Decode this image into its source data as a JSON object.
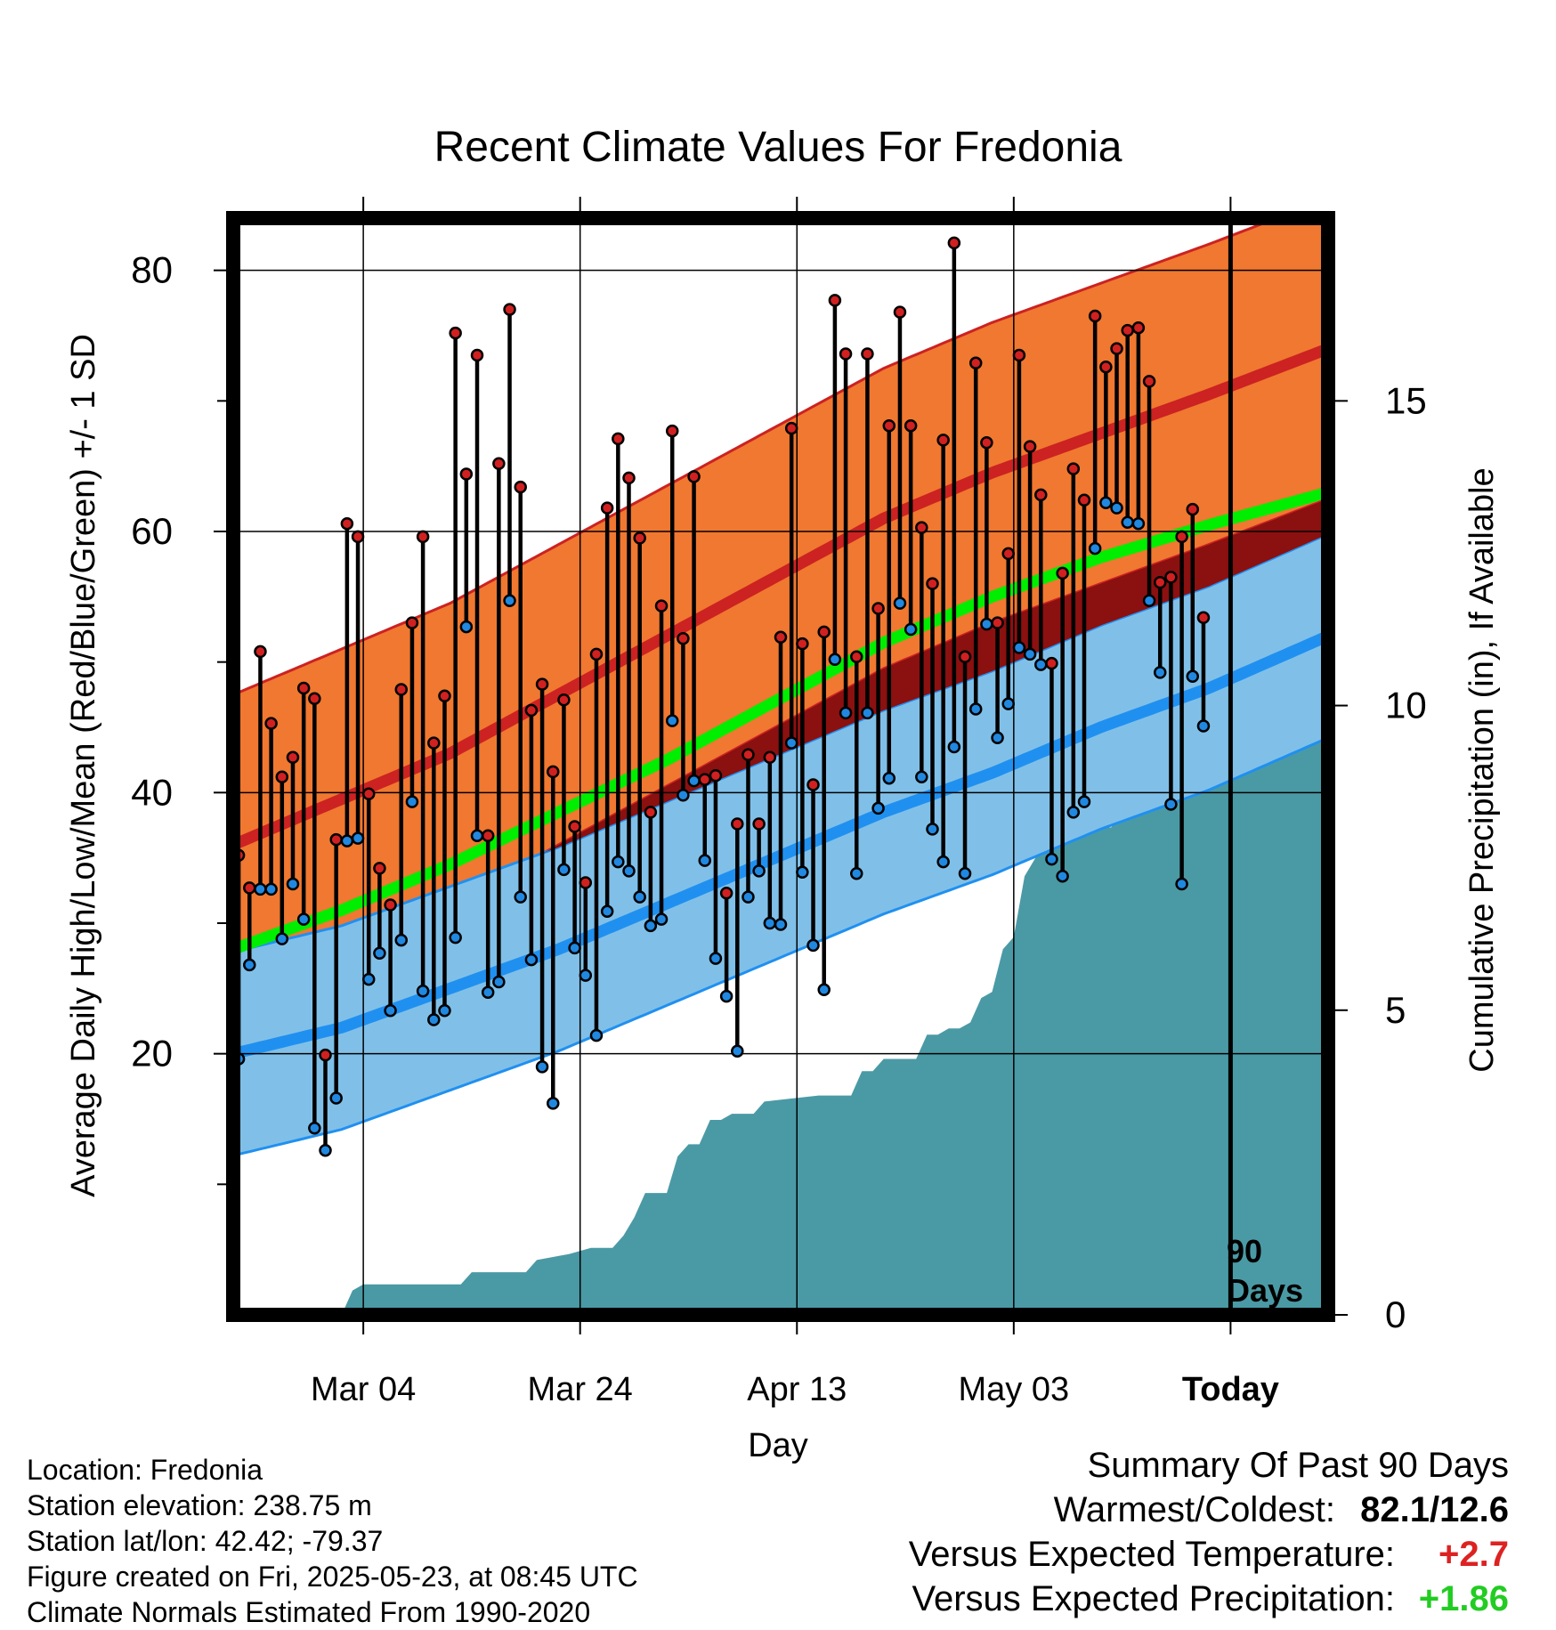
{
  "chart_data": {
    "type": "line",
    "title": "Recent Climate Values For Fredonia",
    "xlabel": "Day",
    "ylabel": "Average Daily High/Low/Mean (Red/Blue/Green) +/- 1 SD",
    "y2label": "Cumulative Precipitation (in), If Available",
    "x_tick_labels": [
      "Mar 04",
      "Mar 24",
      "Apr 13",
      "May 03",
      "Today"
    ],
    "x_tick_days": [
      12,
      32,
      52,
      72,
      92
    ],
    "x_range_days": [
      0,
      101
    ],
    "today_day": 92,
    "today_label": "90 Days",
    "ylim": [
      0,
      84
    ],
    "y_ticks": [
      20,
      40,
      60,
      80
    ],
    "y2lim": [
      0,
      18
    ],
    "y2_ticks": [
      0,
      5,
      10,
      15
    ],
    "grid": true,
    "colors": {
      "high_band": "#f07830",
      "high_mean": "#cc2222",
      "low_band": "#80c0e8",
      "low_mean": "#2090f0",
      "mean": "#00ee00",
      "precip": "#4a9aa5",
      "high_dot": "#d02020",
      "low_dot": "#2088e0",
      "warm_text": "#dd2222",
      "wet_text": "#22cc22"
    },
    "normals_days": [
      0,
      10,
      20,
      30,
      40,
      50,
      60,
      70,
      80,
      90,
      101
    ],
    "normal_high": [
      36,
      39.5,
      43,
      47.5,
      52,
      56.5,
      61,
      64.5,
      67.5,
      70.5,
      74
    ],
    "normal_high_sd": 11.5,
    "normal_low": [
      20,
      22,
      25,
      28,
      31.5,
      35,
      38.5,
      41.5,
      45,
      48,
      52
    ],
    "normal_low_sd": 7.8,
    "normal_mean": [
      28,
      31,
      34.5,
      38.5,
      42.5,
      47,
      51.5,
      55,
      58,
      60.5,
      63
    ],
    "series": [
      {
        "name": "Daily High",
        "values": [
          35.2,
          32.7,
          50.8,
          45.3,
          41.2,
          42.7,
          48,
          47.2,
          19.9,
          36.4,
          60.6,
          59.6,
          39.9,
          34.2,
          31.4,
          47.9,
          53,
          59.6,
          43.8,
          47.4,
          75.2,
          64.4,
          73.5,
          36.7,
          65.2,
          77,
          63.4,
          46.3,
          48.3,
          41.6,
          47.1,
          37.4,
          33.1,
          50.6,
          61.8,
          67.1,
          64.1,
          59.5,
          38.5,
          54.3,
          67.7,
          51.8,
          64.2,
          41,
          41.3,
          32.3,
          37.6,
          42.9,
          37.6,
          42.7,
          51.9,
          67.9,
          51.4,
          40.6,
          52.3,
          77.7,
          73.6,
          50.4,
          73.6,
          54.1,
          68.1,
          76.8,
          68.1,
          60.3,
          56,
          67,
          82.1,
          50.4,
          72.9,
          66.8,
          53,
          58.3,
          73.5,
          66.5,
          62.8,
          49.9,
          56.8,
          64.8,
          62.4,
          76.5,
          72.6,
          74,
          75.4,
          75.6,
          71.5,
          56.1,
          56.5,
          59.6,
          61.7,
          53.4
        ]
      },
      {
        "name": "Daily Low",
        "values": [
          19.6,
          26.8,
          32.6,
          32.6,
          28.8,
          33,
          30.3,
          14.3,
          12.6,
          16.6,
          36.3,
          36.5,
          25.7,
          27.7,
          23.3,
          28.7,
          39.3,
          24.8,
          22.6,
          23.3,
          28.9,
          52.7,
          36.7,
          24.7,
          25.5,
          54.7,
          32,
          27.2,
          19,
          16.2,
          34.1,
          28.1,
          26,
          21.4,
          30.9,
          34.7,
          34,
          32,
          29.8,
          30.3,
          45.5,
          39.8,
          40.9,
          34.8,
          27.3,
          24.4,
          20.2,
          32,
          34,
          30,
          29.9,
          43.8,
          33.9,
          28.3,
          24.9,
          50.2,
          46.1,
          33.8,
          46.1,
          38.8,
          41.1,
          54.5,
          52.5,
          41.2,
          37.2,
          34.7,
          43.5,
          33.8,
          46.4,
          52.9,
          44.2,
          46.8,
          51.1,
          50.6,
          49.8,
          34.9,
          33.6,
          38.5,
          39.3,
          58.7,
          62.2,
          61.8,
          60.7,
          60.6,
          54.7,
          49.2,
          39.1,
          33,
          48.9,
          45.1
        ]
      }
    ],
    "precip_cumulative": [
      [
        0,
        0
      ],
      [
        10,
        0
      ],
      [
        11,
        0.4
      ],
      [
        12,
        0.5
      ],
      [
        21,
        0.5
      ],
      [
        22,
        0.7
      ],
      [
        24,
        0.7
      ],
      [
        27,
        0.7
      ],
      [
        28,
        0.9
      ],
      [
        31,
        1
      ],
      [
        33,
        1.1
      ],
      [
        35,
        1.1
      ],
      [
        36,
        1.3
      ],
      [
        37,
        1.6
      ],
      [
        38,
        2
      ],
      [
        40,
        2
      ],
      [
        41,
        2.6
      ],
      [
        42,
        2.8
      ],
      [
        43,
        2.8
      ],
      [
        44,
        3.2
      ],
      [
        45,
        3.2
      ],
      [
        46,
        3.3
      ],
      [
        48,
        3.3
      ],
      [
        49,
        3.5
      ],
      [
        54,
        3.6
      ],
      [
        57,
        3.6
      ],
      [
        58,
        4
      ],
      [
        59,
        4
      ],
      [
        60,
        4.2
      ],
      [
        61,
        4.2
      ],
      [
        63,
        4.2
      ],
      [
        64,
        4.6
      ],
      [
        65,
        4.6
      ],
      [
        66,
        4.7
      ],
      [
        67,
        4.7
      ],
      [
        68,
        4.8
      ],
      [
        69,
        5.2
      ],
      [
        70,
        5.3
      ],
      [
        71,
        6
      ],
      [
        72,
        6.2
      ],
      [
        73,
        7.2
      ],
      [
        74,
        7.5
      ],
      [
        75,
        8
      ],
      [
        76,
        8
      ],
      [
        81,
        8
      ],
      [
        82,
        8.3
      ],
      [
        83,
        8.3
      ],
      [
        85,
        8.3
      ],
      [
        86,
        8.6
      ],
      [
        87,
        8.6
      ],
      [
        88,
        9.1
      ],
      [
        89,
        10.2
      ],
      [
        90,
        10.2
      ],
      [
        101,
        10.2
      ]
    ]
  },
  "location": {
    "name_line": "Location: Fredonia",
    "elevation_line": "Station elevation: 238.75 m",
    "latlon_line": "Station lat/lon: 42.42; -79.37",
    "created_line": "Figure created on Fri, 2025-05-23, at 08:45 UTC",
    "normals_line": "Climate Normals Estimated From 1990-2020"
  },
  "summary": {
    "heading": "Summary Of Past 90 Days",
    "warmest_label": "Warmest/Coldest:",
    "warmest_value": "82.1/12.6",
    "temp_label": "Versus Expected Temperature:",
    "temp_value": "+2.7",
    "precip_label": "Versus Expected Precipitation:",
    "precip_value": "+1.86"
  }
}
